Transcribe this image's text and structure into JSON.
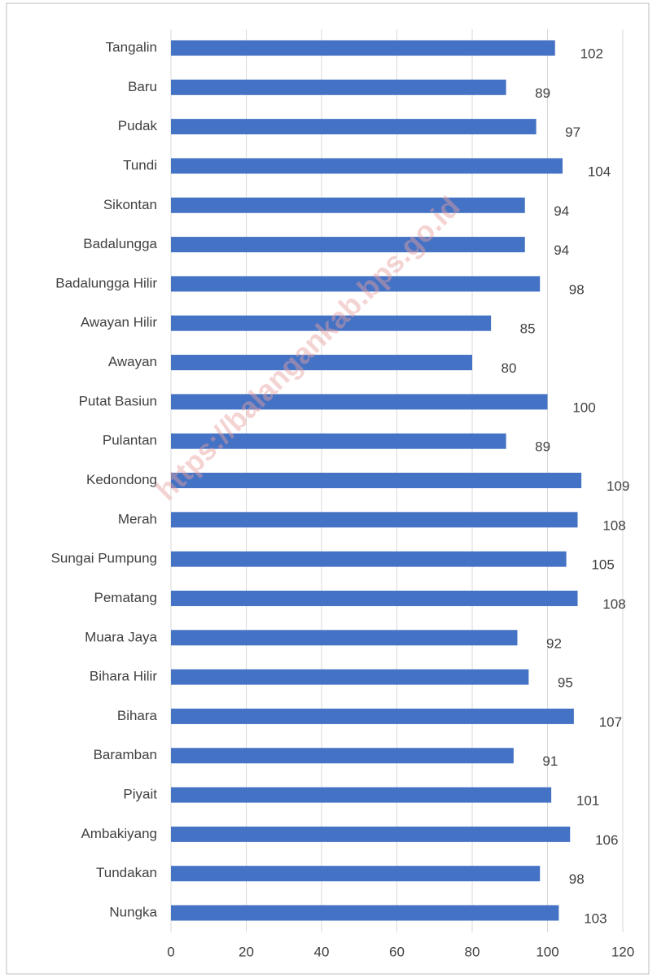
{
  "chart_data": {
    "type": "bar",
    "orientation": "horizontal",
    "categories": [
      "Tangalin",
      "Baru",
      "Pudak",
      "Tundi",
      "Sikontan",
      "Badalungga",
      "Badalungga Hilir",
      "Awayan Hilir",
      "Awayan",
      "Putat Basiun",
      "Pulantan",
      "Kedondong",
      "Merah",
      "Sungai Pumpung",
      "Pematang",
      "Muara Jaya",
      "Bihara Hilir",
      "Bihara",
      "Baramban",
      "Piyait",
      "Ambakiyang",
      "Tundakan",
      "Nungka"
    ],
    "values": [
      102,
      89,
      97,
      104,
      94,
      94,
      98,
      85,
      80,
      100,
      89,
      109,
      108,
      105,
      108,
      92,
      95,
      107,
      91,
      101,
      106,
      98,
      103
    ],
    "color": "#4472c4",
    "xlim": [
      0,
      120
    ],
    "xticks": [
      0,
      20,
      40,
      60,
      80,
      100,
      120
    ],
    "grid": true,
    "watermark": "https://balangankab.bps.go.id"
  }
}
